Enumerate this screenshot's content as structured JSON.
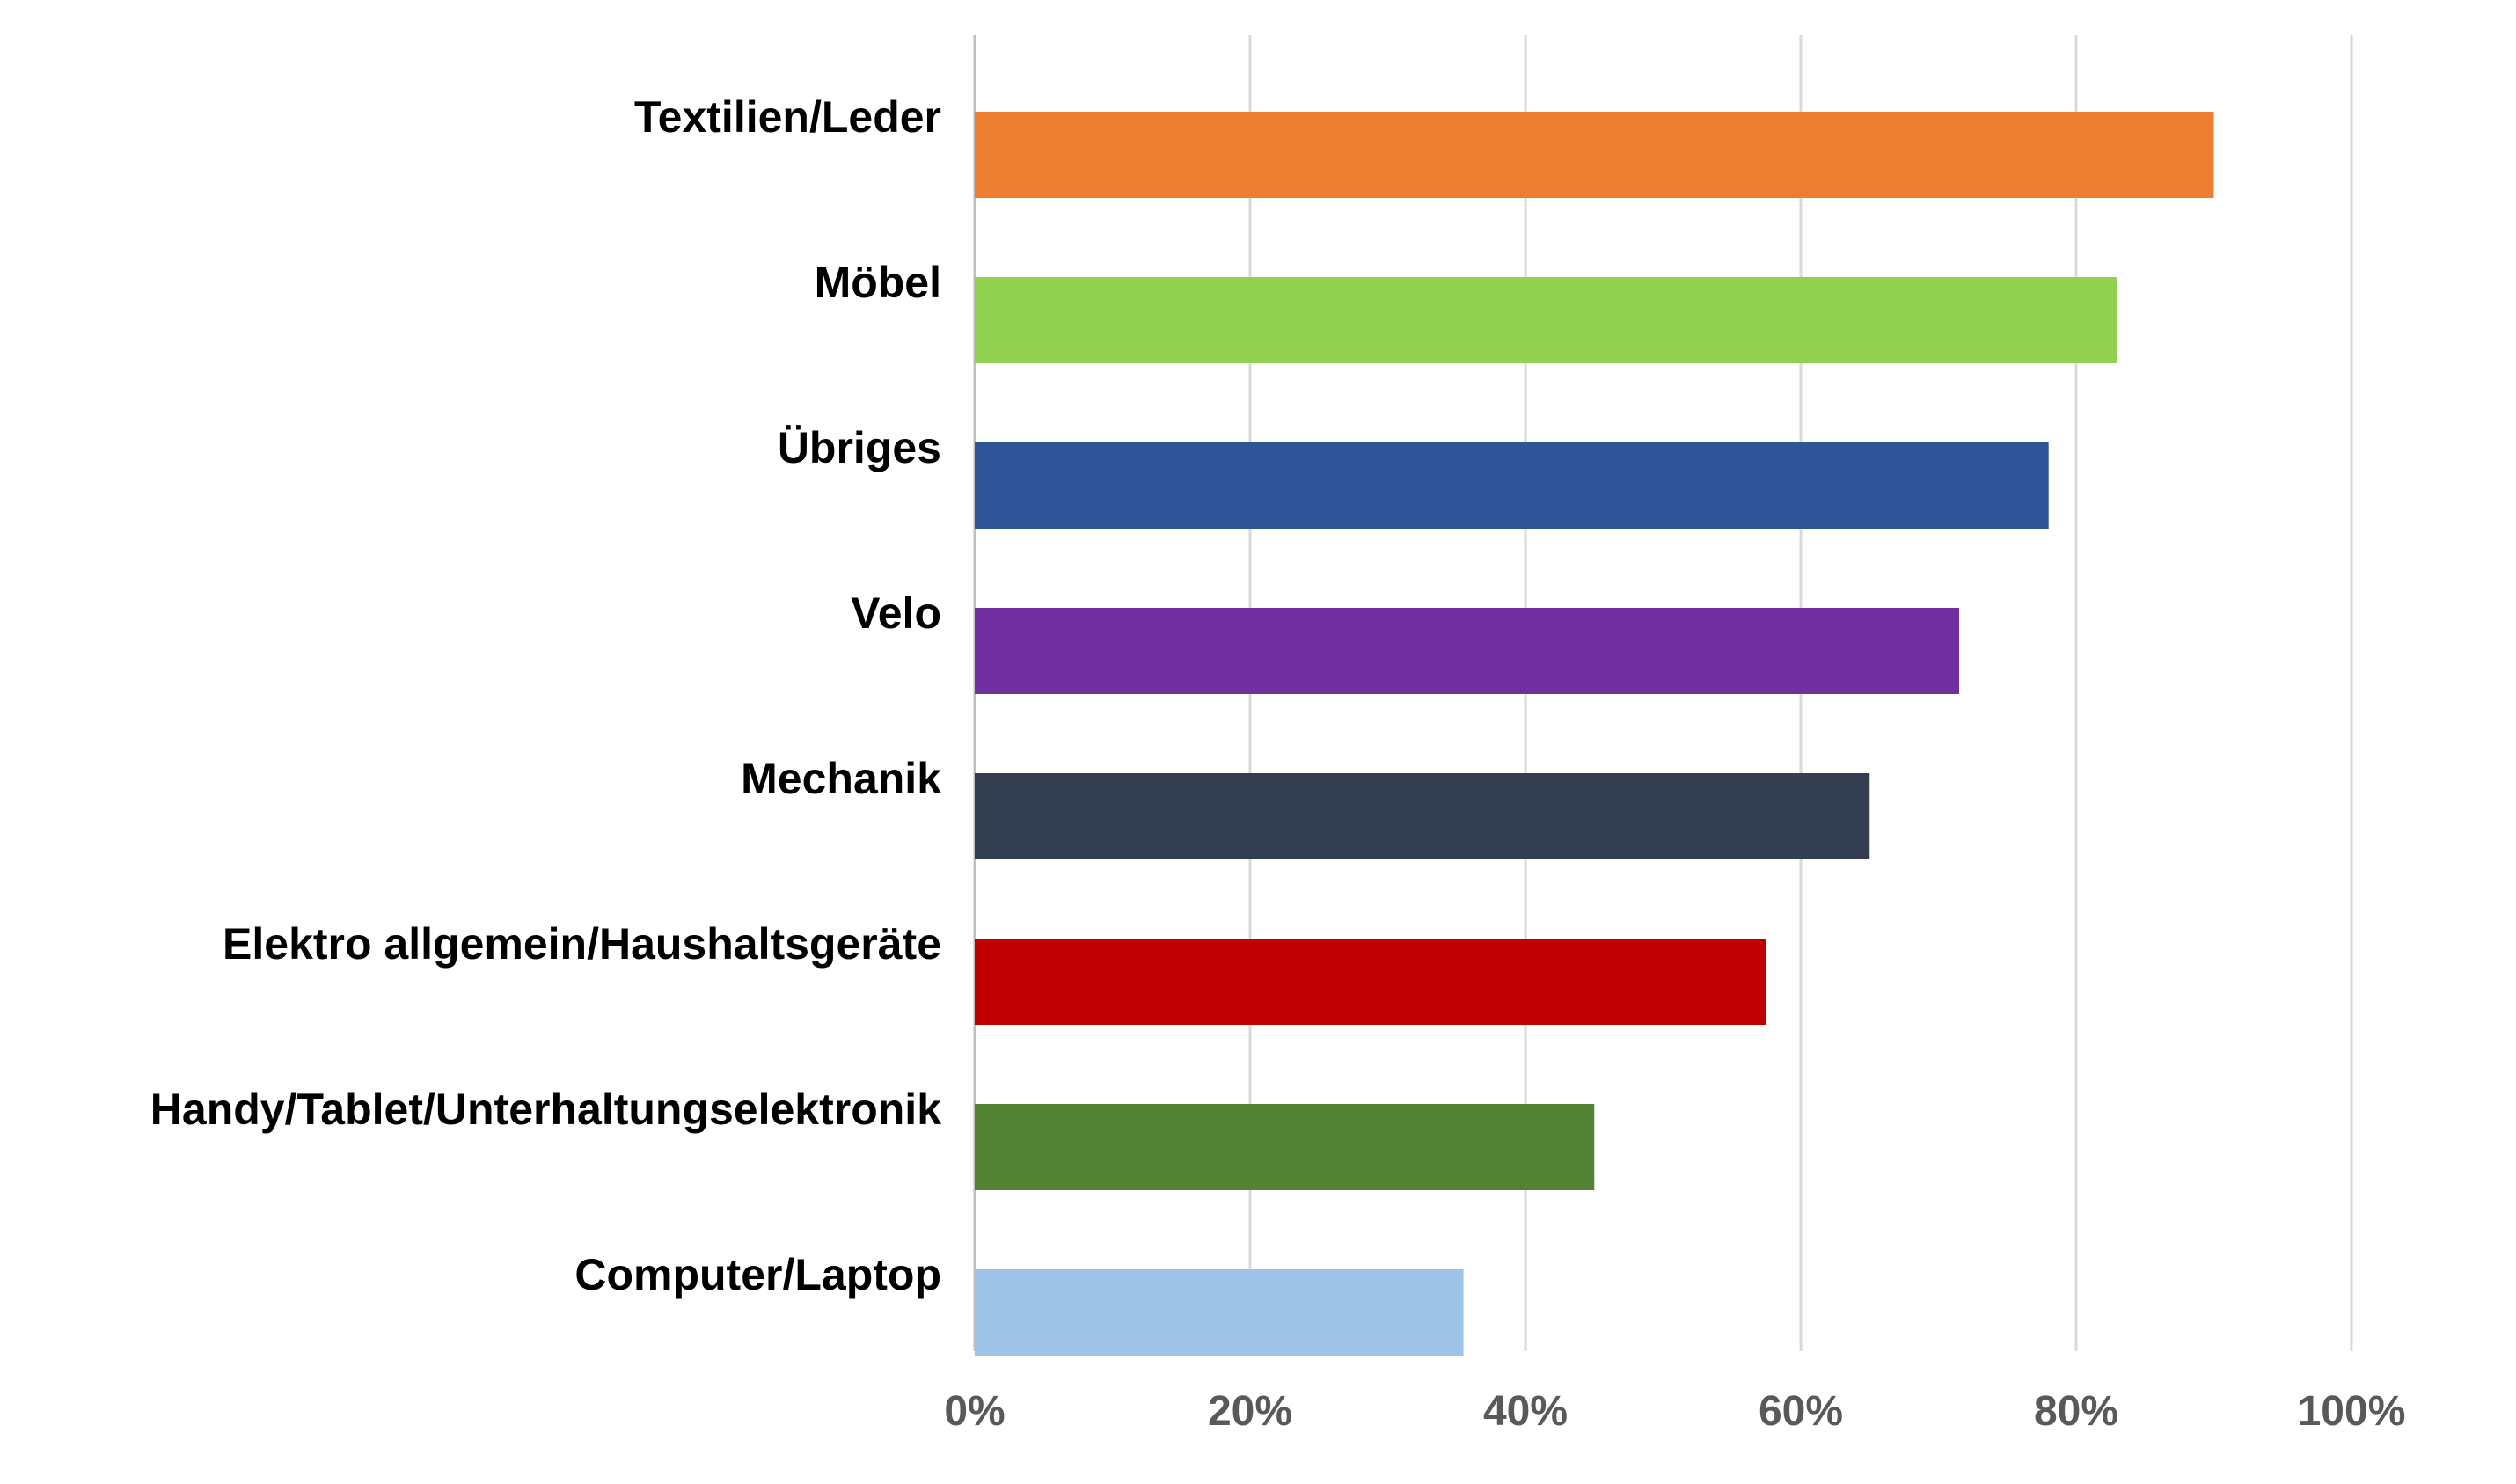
{
  "chart_data": {
    "type": "bar",
    "orientation": "horizontal",
    "categories": [
      "Textilien/Leder",
      "Möbel",
      "Übriges",
      "Velo",
      "Mechanik",
      "Elektro allgemein/Haushaltsgeräte",
      "Handy/Tablet/Unterhaltungselektronik",
      "Computer/Laptop"
    ],
    "values": [
      90,
      83,
      78,
      71.5,
      65,
      57.5,
      45,
      35.5
    ],
    "colors": [
      "#ED7D31",
      "#92D050",
      "#2F5597",
      "#7030A0",
      "#333F50",
      "#C00000",
      "#548235",
      "#9DC3E6"
    ],
    "xlim": [
      0,
      100
    ],
    "xticks": [
      0,
      20,
      40,
      60,
      80,
      100
    ],
    "xtick_labels": [
      "0%",
      "20%",
      "40%",
      "60%",
      "80%",
      "100%"
    ],
    "grid": "vertical",
    "legend": "none",
    "title": "",
    "xlabel": "",
    "ylabel": ""
  }
}
